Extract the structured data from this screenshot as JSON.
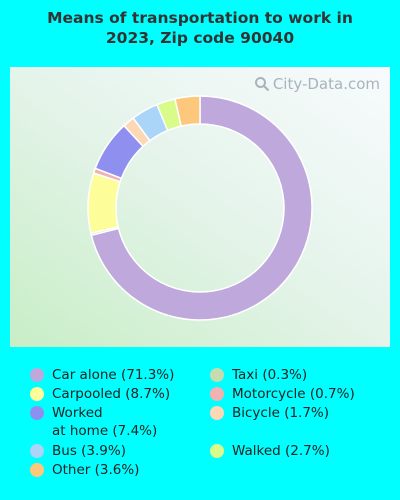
{
  "title_line1": "Means of transportation to work in",
  "title_line2": "2023, Zip code 90040",
  "watermark": "City-Data.com",
  "colors": {
    "background": "#00FFFF"
  },
  "chart_data": {
    "type": "pie",
    "donut": true,
    "title": "Means of transportation to work in 2023, Zip code 90040",
    "legend_position": "bottom",
    "slices": [
      {
        "label": "Car alone",
        "value": 71.3,
        "display": "Car alone (71.3%)",
        "color": "#bfa8db"
      },
      {
        "label": "Taxi",
        "value": 0.3,
        "display": "Taxi (0.3%)",
        "color": "#c6dcae"
      },
      {
        "label": "Carpooled",
        "value": 8.7,
        "display": "Carpooled (8.7%)",
        "color": "#fdfd99"
      },
      {
        "label": "Motorcycle",
        "value": 0.7,
        "display": "Motorcycle (0.7%)",
        "color": "#f3b1b1"
      },
      {
        "label": "Worked at home",
        "value": 7.4,
        "display": "Worked\nat home (7.4%)",
        "color": "#8f8fef"
      },
      {
        "label": "Bicycle",
        "value": 1.7,
        "display": "Bicycle (1.7%)",
        "color": "#fed8b4"
      },
      {
        "label": "Bus",
        "value": 3.9,
        "display": "Bus (3.9%)",
        "color": "#aad4f8"
      },
      {
        "label": "Walked",
        "value": 2.7,
        "display": "Walked (2.7%)",
        "color": "#d8fb8a"
      },
      {
        "label": "Other",
        "value": 3.6,
        "display": "Other (3.6%)",
        "color": "#fdc77c"
      }
    ]
  }
}
